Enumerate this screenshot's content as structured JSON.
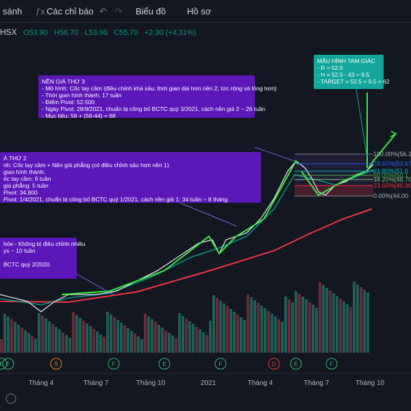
{
  "toolbar": {
    "compare": "sánh",
    "indicators": "Các chỉ báo",
    "chart": "Biểu đồ",
    "profile": "Hồ sơ"
  },
  "symbol": {
    "exchange": "HSX",
    "open": "O53.90",
    "high": "H56.70",
    "low": "L53.90",
    "close": "C55.70",
    "change": "+2.30 (+4.31%)"
  },
  "annotations": [
    {
      "title": "NỀN GIÁ THỨ 3",
      "lines": [
        "- Mô hình: Cốc tay cầm (điều chỉnh khá sâu, thời gian dài hơn nền 2, tức rộng và lỏng hơn)",
        "- Thời gian hình thành: 17 tuần",
        "- Điểm Pivot: 52.500",
        "- Ngày Pivot: 28/9/2021, chuẩn bị công bố BCTC quý 3/2021, cách nền giá 2 ~ 26 tuần",
        "- Mục tiêu: 56 + (56-44) = 68"
      ]
    },
    {
      "title": "Á THỨ 2",
      "lines": [
        "nh: Cốc tay cầm + Nền giá phẳng (có điều chỉnh sâu hơn nền 1)",
        "gian hình thành:",
        "ốc tay cầm: 6 tuần",
        "giá phẳng: 5 tuần",
        "Pivot: 34.900",
        "Pivot: 1/4/2021, chuẩn bị công bố BCTC quý 1/2021, cách nền giá 1: 34 tuần ~ 8 tháng"
      ]
    },
    {
      "title": "hỏe - Không bị điều chỉnh nhiều",
      "lines": [
        "ys ~ 10 tuần",
        "",
        "BCTC quý 2/2020"
      ]
    },
    {
      "title": "MẪU HÌNH TAM GIÁC",
      "lines": [
        "- R = 52.5",
        "- H = 52.5 - 43 = 9.5",
        "- TARGET = 52.5 + 9.5 = 62"
      ]
    }
  ],
  "fib_levels": [
    "100.00%(56.2",
    "78.60%(53.67",
    "61.80%(51.6",
    "50.00%(50.1",
    "38.20%(48.70",
    "23.60%(46.90",
    "0.00%(44.00"
  ],
  "x_axis": [
    "Tháng 4",
    "Tháng 7",
    "Tháng 10",
    "2021",
    "Tháng 4",
    "Tháng 7",
    "Tháng 10"
  ],
  "events": [
    "E",
    "F",
    "S",
    "F",
    "E",
    "F",
    "D",
    "E",
    "F"
  ]
}
